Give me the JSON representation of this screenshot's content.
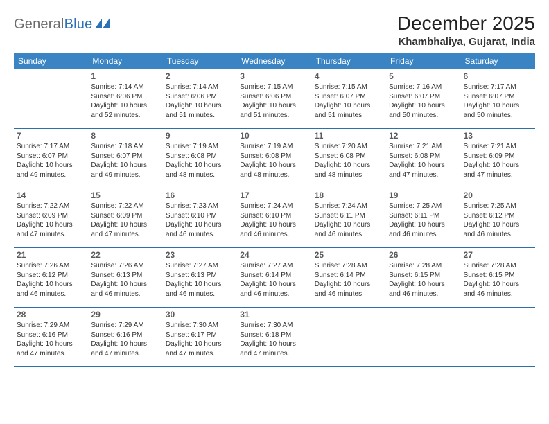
{
  "brand": {
    "part1": "General",
    "part2": "Blue"
  },
  "title": "December 2025",
  "location": "Khambhaliya, Gujarat, India",
  "weekdays": [
    "Sunday",
    "Monday",
    "Tuesday",
    "Wednesday",
    "Thursday",
    "Friday",
    "Saturday"
  ],
  "colors": {
    "header_bg": "#3a84c4",
    "header_text": "#ffffff",
    "row_border": "#2f6fa8",
    "brand_gray": "#6a6a6a",
    "brand_blue": "#2a72b5"
  },
  "weeks": [
    [
      null,
      {
        "n": "1",
        "sunrise": "Sunrise: 7:14 AM",
        "sunset": "Sunset: 6:06 PM",
        "day1": "Daylight: 10 hours",
        "day2": "and 52 minutes."
      },
      {
        "n": "2",
        "sunrise": "Sunrise: 7:14 AM",
        "sunset": "Sunset: 6:06 PM",
        "day1": "Daylight: 10 hours",
        "day2": "and 51 minutes."
      },
      {
        "n": "3",
        "sunrise": "Sunrise: 7:15 AM",
        "sunset": "Sunset: 6:06 PM",
        "day1": "Daylight: 10 hours",
        "day2": "and 51 minutes."
      },
      {
        "n": "4",
        "sunrise": "Sunrise: 7:15 AM",
        "sunset": "Sunset: 6:07 PM",
        "day1": "Daylight: 10 hours",
        "day2": "and 51 minutes."
      },
      {
        "n": "5",
        "sunrise": "Sunrise: 7:16 AM",
        "sunset": "Sunset: 6:07 PM",
        "day1": "Daylight: 10 hours",
        "day2": "and 50 minutes."
      },
      {
        "n": "6",
        "sunrise": "Sunrise: 7:17 AM",
        "sunset": "Sunset: 6:07 PM",
        "day1": "Daylight: 10 hours",
        "day2": "and 50 minutes."
      }
    ],
    [
      {
        "n": "7",
        "sunrise": "Sunrise: 7:17 AM",
        "sunset": "Sunset: 6:07 PM",
        "day1": "Daylight: 10 hours",
        "day2": "and 49 minutes."
      },
      {
        "n": "8",
        "sunrise": "Sunrise: 7:18 AM",
        "sunset": "Sunset: 6:07 PM",
        "day1": "Daylight: 10 hours",
        "day2": "and 49 minutes."
      },
      {
        "n": "9",
        "sunrise": "Sunrise: 7:19 AM",
        "sunset": "Sunset: 6:08 PM",
        "day1": "Daylight: 10 hours",
        "day2": "and 48 minutes."
      },
      {
        "n": "10",
        "sunrise": "Sunrise: 7:19 AM",
        "sunset": "Sunset: 6:08 PM",
        "day1": "Daylight: 10 hours",
        "day2": "and 48 minutes."
      },
      {
        "n": "11",
        "sunrise": "Sunrise: 7:20 AM",
        "sunset": "Sunset: 6:08 PM",
        "day1": "Daylight: 10 hours",
        "day2": "and 48 minutes."
      },
      {
        "n": "12",
        "sunrise": "Sunrise: 7:21 AM",
        "sunset": "Sunset: 6:08 PM",
        "day1": "Daylight: 10 hours",
        "day2": "and 47 minutes."
      },
      {
        "n": "13",
        "sunrise": "Sunrise: 7:21 AM",
        "sunset": "Sunset: 6:09 PM",
        "day1": "Daylight: 10 hours",
        "day2": "and 47 minutes."
      }
    ],
    [
      {
        "n": "14",
        "sunrise": "Sunrise: 7:22 AM",
        "sunset": "Sunset: 6:09 PM",
        "day1": "Daylight: 10 hours",
        "day2": "and 47 minutes."
      },
      {
        "n": "15",
        "sunrise": "Sunrise: 7:22 AM",
        "sunset": "Sunset: 6:09 PM",
        "day1": "Daylight: 10 hours",
        "day2": "and 47 minutes."
      },
      {
        "n": "16",
        "sunrise": "Sunrise: 7:23 AM",
        "sunset": "Sunset: 6:10 PM",
        "day1": "Daylight: 10 hours",
        "day2": "and 46 minutes."
      },
      {
        "n": "17",
        "sunrise": "Sunrise: 7:24 AM",
        "sunset": "Sunset: 6:10 PM",
        "day1": "Daylight: 10 hours",
        "day2": "and 46 minutes."
      },
      {
        "n": "18",
        "sunrise": "Sunrise: 7:24 AM",
        "sunset": "Sunset: 6:11 PM",
        "day1": "Daylight: 10 hours",
        "day2": "and 46 minutes."
      },
      {
        "n": "19",
        "sunrise": "Sunrise: 7:25 AM",
        "sunset": "Sunset: 6:11 PM",
        "day1": "Daylight: 10 hours",
        "day2": "and 46 minutes."
      },
      {
        "n": "20",
        "sunrise": "Sunrise: 7:25 AM",
        "sunset": "Sunset: 6:12 PM",
        "day1": "Daylight: 10 hours",
        "day2": "and 46 minutes."
      }
    ],
    [
      {
        "n": "21",
        "sunrise": "Sunrise: 7:26 AM",
        "sunset": "Sunset: 6:12 PM",
        "day1": "Daylight: 10 hours",
        "day2": "and 46 minutes."
      },
      {
        "n": "22",
        "sunrise": "Sunrise: 7:26 AM",
        "sunset": "Sunset: 6:13 PM",
        "day1": "Daylight: 10 hours",
        "day2": "and 46 minutes."
      },
      {
        "n": "23",
        "sunrise": "Sunrise: 7:27 AM",
        "sunset": "Sunset: 6:13 PM",
        "day1": "Daylight: 10 hours",
        "day2": "and 46 minutes."
      },
      {
        "n": "24",
        "sunrise": "Sunrise: 7:27 AM",
        "sunset": "Sunset: 6:14 PM",
        "day1": "Daylight: 10 hours",
        "day2": "and 46 minutes."
      },
      {
        "n": "25",
        "sunrise": "Sunrise: 7:28 AM",
        "sunset": "Sunset: 6:14 PM",
        "day1": "Daylight: 10 hours",
        "day2": "and 46 minutes."
      },
      {
        "n": "26",
        "sunrise": "Sunrise: 7:28 AM",
        "sunset": "Sunset: 6:15 PM",
        "day1": "Daylight: 10 hours",
        "day2": "and 46 minutes."
      },
      {
        "n": "27",
        "sunrise": "Sunrise: 7:28 AM",
        "sunset": "Sunset: 6:15 PM",
        "day1": "Daylight: 10 hours",
        "day2": "and 46 minutes."
      }
    ],
    [
      {
        "n": "28",
        "sunrise": "Sunrise: 7:29 AM",
        "sunset": "Sunset: 6:16 PM",
        "day1": "Daylight: 10 hours",
        "day2": "and 47 minutes."
      },
      {
        "n": "29",
        "sunrise": "Sunrise: 7:29 AM",
        "sunset": "Sunset: 6:16 PM",
        "day1": "Daylight: 10 hours",
        "day2": "and 47 minutes."
      },
      {
        "n": "30",
        "sunrise": "Sunrise: 7:30 AM",
        "sunset": "Sunset: 6:17 PM",
        "day1": "Daylight: 10 hours",
        "day2": "and 47 minutes."
      },
      {
        "n": "31",
        "sunrise": "Sunrise: 7:30 AM",
        "sunset": "Sunset: 6:18 PM",
        "day1": "Daylight: 10 hours",
        "day2": "and 47 minutes."
      },
      null,
      null,
      null
    ]
  ]
}
